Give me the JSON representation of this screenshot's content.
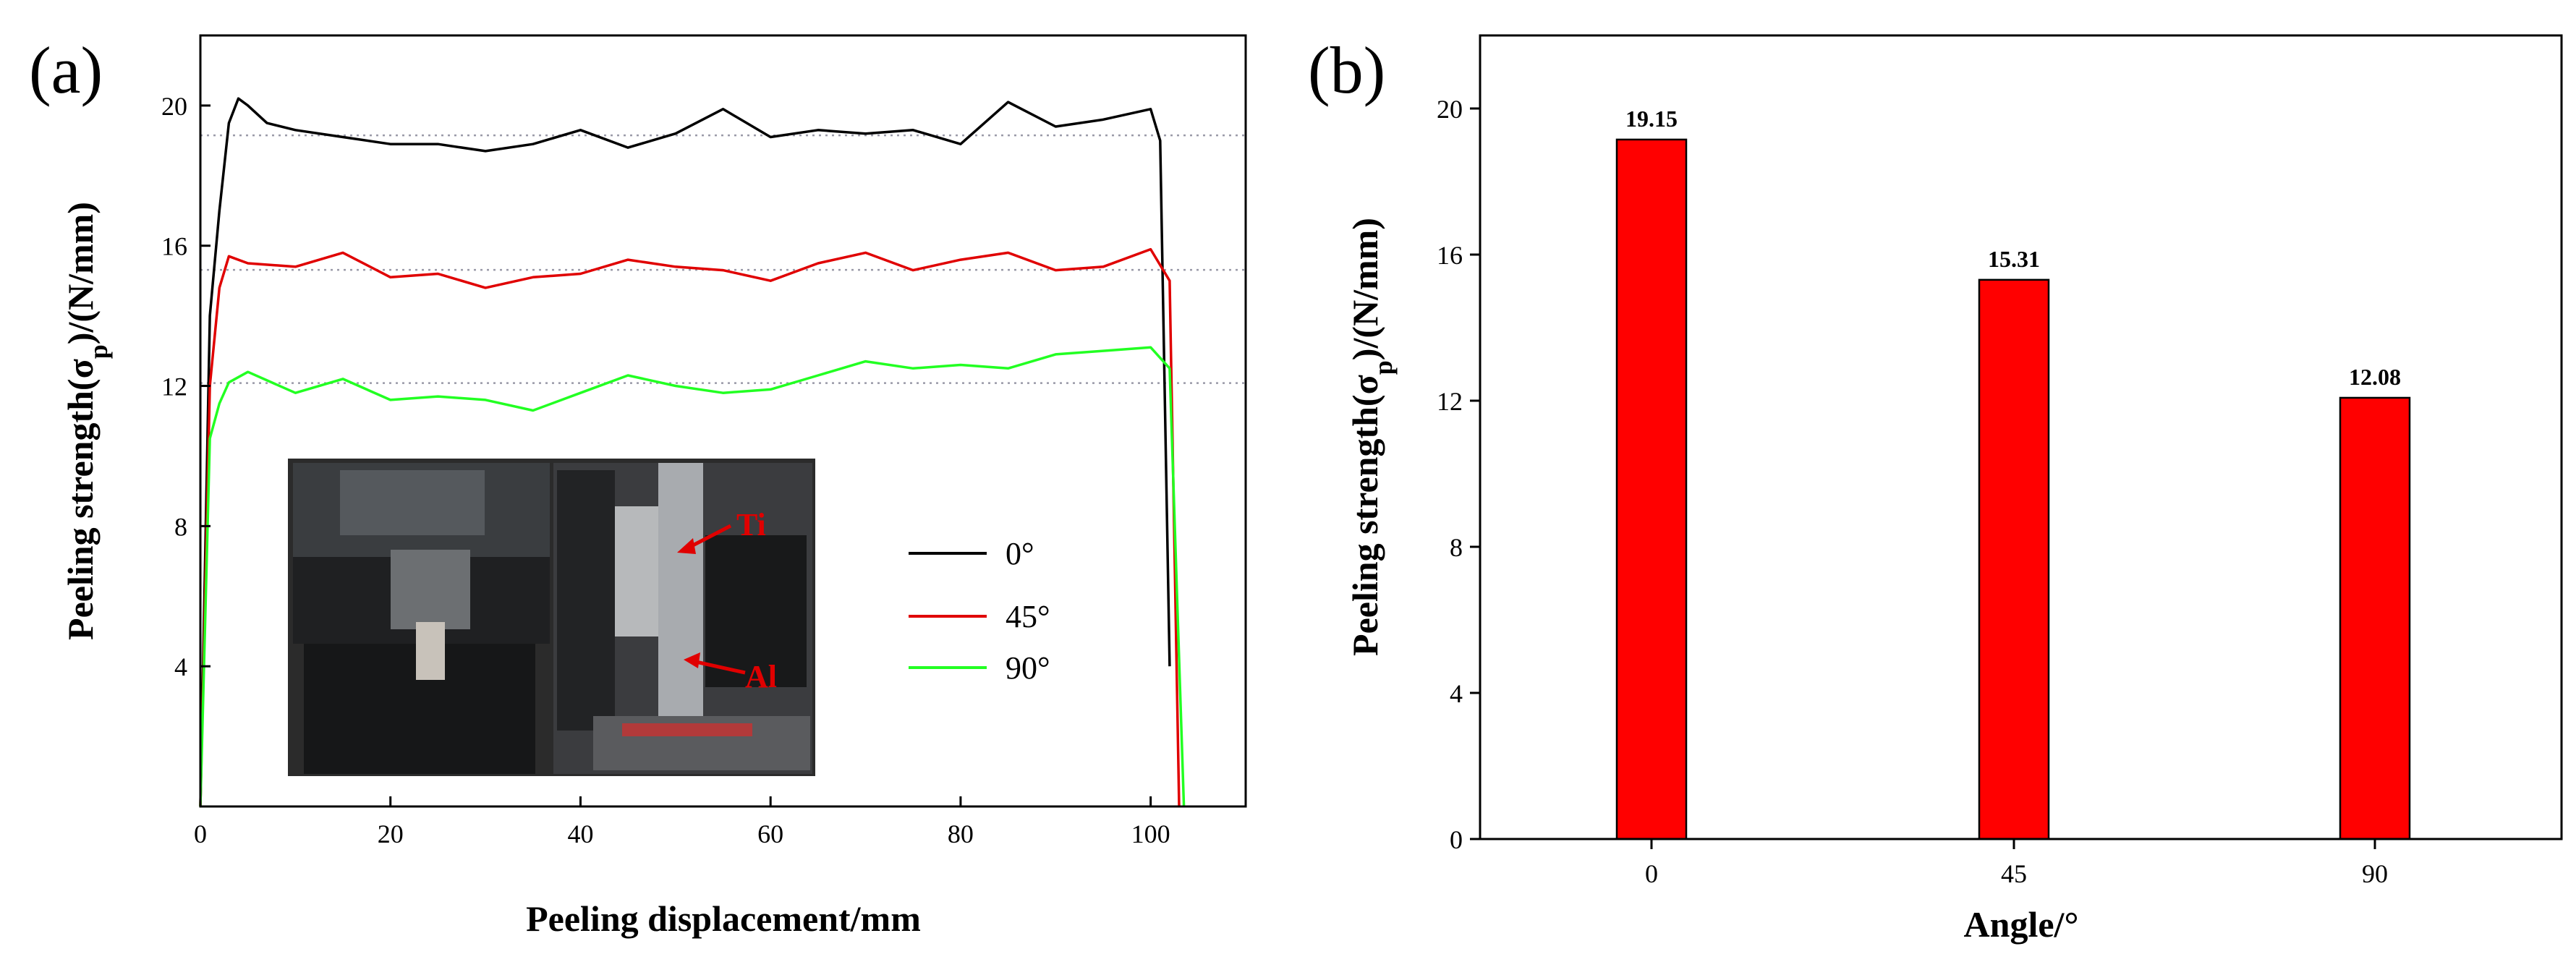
{
  "chart_data": [
    {
      "panel": "(a)",
      "type": "line",
      "xlabel": "Peeling displacement/mm",
      "ylabel": "Peeling strength(σp)/(N/mm)",
      "xlim": [
        0,
        110
      ],
      "ylim": [
        0,
        22
      ],
      "xticks": [
        0,
        20,
        40,
        60,
        80,
        100
      ],
      "yticks": [
        4,
        8,
        12,
        16,
        20
      ],
      "xtick_labels": [
        "0",
        "20",
        "40",
        "60",
        "80",
        "100"
      ],
      "ytick_labels": [
        "4",
        "8",
        "12",
        "16",
        "20"
      ],
      "reference_lines": [
        19.15,
        15.31,
        12.08
      ],
      "series": [
        {
          "name": "0°",
          "color": "#000000",
          "x": [
            0,
            1,
            2,
            3,
            4,
            5,
            7,
            10,
            15,
            20,
            25,
            30,
            35,
            40,
            45,
            50,
            55,
            60,
            65,
            70,
            75,
            80,
            85,
            90,
            95,
            100,
            101,
            102
          ],
          "y": [
            0,
            14,
            17,
            19.5,
            20.2,
            20,
            19.5,
            19.3,
            19.1,
            18.9,
            18.9,
            18.7,
            18.9,
            19.3,
            18.8,
            19.2,
            19.9,
            19.1,
            19.3,
            19.2,
            19.3,
            18.9,
            20.1,
            19.4,
            19.6,
            19.9,
            19,
            4
          ]
        },
        {
          "name": "45°",
          "color": "#e00000",
          "x": [
            0,
            1,
            2,
            3,
            5,
            10,
            15,
            20,
            25,
            30,
            35,
            40,
            45,
            50,
            55,
            60,
            65,
            70,
            75,
            80,
            85,
            90,
            95,
            100,
            102,
            103
          ],
          "y": [
            0,
            12,
            14.8,
            15.7,
            15.5,
            15.4,
            15.8,
            15.1,
            15.2,
            14.8,
            15.1,
            15.2,
            15.6,
            15.4,
            15.3,
            15,
            15.5,
            15.8,
            15.3,
            15.6,
            15.8,
            15.3,
            15.4,
            15.9,
            15,
            0
          ]
        },
        {
          "name": "90°",
          "color": "#22ff22",
          "x": [
            0,
            1,
            2,
            3,
            5,
            10,
            15,
            20,
            25,
            30,
            35,
            40,
            45,
            50,
            55,
            60,
            65,
            70,
            75,
            80,
            85,
            90,
            95,
            100,
            102,
            103.5
          ],
          "y": [
            0,
            10.5,
            11.5,
            12.1,
            12.4,
            11.8,
            12.2,
            11.6,
            11.7,
            11.6,
            11.3,
            11.8,
            12.3,
            12,
            11.8,
            11.9,
            12.3,
            12.7,
            12.5,
            12.6,
            12.5,
            12.9,
            13,
            13.1,
            12.5,
            0
          ]
        }
      ],
      "legend": {
        "entries": [
          "0°",
          "45°",
          "90°"
        ],
        "placement": "right-center"
      },
      "inset_photo_labels": [
        "Ti",
        "Al"
      ]
    },
    {
      "panel": "(b)",
      "type": "bar",
      "xlabel": "Angle/°",
      "ylabel": "Peeling strength(σp)/(N/mm)",
      "categories": [
        "0",
        "45",
        "90"
      ],
      "values": [
        19.15,
        15.31,
        12.08
      ],
      "value_labels": [
        "19.15",
        "15.31",
        "12.08"
      ],
      "ylim": [
        0,
        22
      ],
      "yticks": [
        0,
        4,
        8,
        12,
        16,
        20
      ],
      "ytick_labels": [
        "0",
        "4",
        "8",
        "12",
        "16",
        "20"
      ],
      "bar_color": "#ff0000"
    }
  ],
  "colors": {
    "frame": "#000000",
    "reference_line": "#9a9aa8",
    "bar": "#ff0000"
  }
}
